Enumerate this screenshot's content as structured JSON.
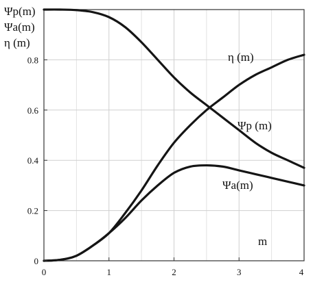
{
  "chart_data": {
    "type": "line",
    "title": "",
    "xlabel": "m",
    "ylabel_lines": [
      "Ψp(m)",
      "Ψa(m)",
      "η (m)"
    ],
    "xlim": [
      0,
      4
    ],
    "ylim": [
      0,
      1
    ],
    "x_ticks": [
      0,
      1,
      2,
      3,
      4
    ],
    "x_tick_labels": [
      "0",
      "1",
      "2",
      "3",
      "4"
    ],
    "y_ticks": [
      0,
      0.2,
      0.4,
      0.6,
      0.8
    ],
    "y_tick_labels": [
      "0",
      "0.2",
      "0.4",
      "0.6",
      "0.8"
    ],
    "grid": true,
    "legend": "none",
    "series": [
      {
        "name": "Ψp (m)",
        "x": [
          0,
          0.25,
          0.5,
          0.75,
          1.0,
          1.25,
          1.5,
          1.75,
          2.0,
          2.25,
          2.5,
          2.75,
          3.0,
          3.25,
          3.5,
          3.75,
          4.0
        ],
        "y": [
          1.0,
          1.0,
          0.998,
          0.99,
          0.97,
          0.93,
          0.87,
          0.8,
          0.73,
          0.67,
          0.62,
          0.57,
          0.52,
          0.47,
          0.43,
          0.4,
          0.37
        ]
      },
      {
        "name": "η (m)",
        "x": [
          0,
          0.25,
          0.5,
          0.75,
          1.0,
          1.25,
          1.5,
          1.75,
          2.0,
          2.25,
          2.5,
          2.75,
          3.0,
          3.25,
          3.5,
          3.75,
          4.0
        ],
        "y": [
          0.0,
          0.004,
          0.02,
          0.06,
          0.11,
          0.19,
          0.28,
          0.38,
          0.47,
          0.54,
          0.6,
          0.65,
          0.7,
          0.74,
          0.77,
          0.8,
          0.82
        ]
      },
      {
        "name": "Ψa(m)",
        "x": [
          0,
          0.25,
          0.5,
          0.75,
          1.0,
          1.25,
          1.5,
          1.75,
          2.0,
          2.25,
          2.5,
          2.75,
          3.0,
          3.25,
          3.5,
          3.75,
          4.0
        ],
        "y": [
          0.0,
          0.004,
          0.02,
          0.06,
          0.11,
          0.17,
          0.24,
          0.3,
          0.35,
          0.375,
          0.38,
          0.375,
          0.36,
          0.345,
          0.33,
          0.315,
          0.3
        ]
      }
    ]
  }
}
